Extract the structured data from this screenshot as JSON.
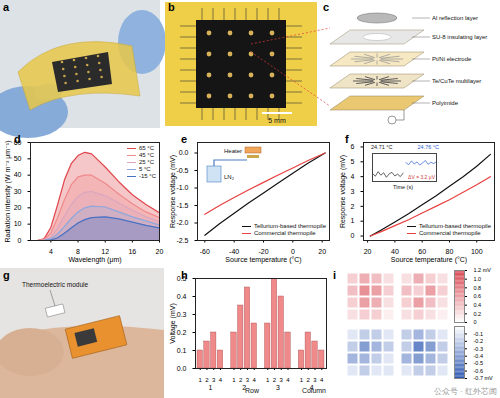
{
  "figure": {
    "panel_labels": [
      "a",
      "b",
      "c",
      "d",
      "e",
      "f",
      "g",
      "h",
      "i"
    ],
    "watermark": "公众号 · 红外芯闻"
  },
  "photo_b": {
    "scale_bar": "5 mm"
  },
  "diagram_c": {
    "layers": [
      "Al reflection layer",
      "SU-8 insulating layer",
      "Pt/Ni electrode",
      "Te/CuTe multilayer",
      "Polyimide"
    ]
  },
  "photo_g": {
    "label": "Thermoelectric module"
  },
  "chart_data": [
    {
      "type": "area",
      "xlabel": "Wavelength (μm)",
      "ylabel": "Radiation intensity (W m⁻² μm⁻¹)",
      "x": [
        2,
        3,
        4,
        5,
        6,
        7,
        8,
        9,
        10,
        12,
        14,
        16,
        18,
        20
      ],
      "series": [
        {
          "name": "65 °C",
          "color": "#e0474c",
          "values": [
            0,
            1,
            8,
            22,
            37,
            47,
            52,
            54,
            53,
            45,
            36,
            28,
            22,
            17
          ]
        },
        {
          "name": "45 °C",
          "color": "#ef8a8c",
          "values": [
            0,
            0.5,
            4.5,
            14,
            25,
            34,
            39,
            40,
            40,
            35,
            28.5,
            22.5,
            17.5,
            14
          ]
        },
        {
          "name": "25 °C",
          "color": "#d9a7c0",
          "values": [
            0,
            0.2,
            2,
            7.5,
            15,
            22,
            27,
            29.5,
            30,
            27.5,
            23,
            18.5,
            14.5,
            11.5
          ]
        },
        {
          "name": "5 °C",
          "color": "#8ea8dc",
          "values": [
            0,
            0.1,
            1,
            4,
            8.5,
            13.5,
            17.5,
            20,
            21,
            20.5,
            17.5,
            14.5,
            12,
            9.5
          ]
        },
        {
          "name": "-15 °C",
          "color": "#4a72c4",
          "values": [
            0,
            0,
            0.3,
            1.7,
            4.4,
            7.7,
            10.7,
            12.8,
            14,
            14.5,
            13.2,
            11.2,
            9.3,
            7.6
          ]
        }
      ],
      "xlim": [
        1,
        20
      ],
      "xticks": [
        4,
        8,
        12,
        16,
        20
      ],
      "ylim": [
        0,
        60
      ],
      "yticks": [
        0,
        10,
        20,
        30,
        40,
        50,
        60
      ],
      "legend": "top-right"
    },
    {
      "type": "line",
      "xlabel": "Source temperature (°C)",
      "ylabel": "Response voltage (mV)",
      "annotations": [
        "Heater",
        "LN₂"
      ],
      "x": [
        -60,
        -50,
        -40,
        -30,
        -20,
        -10,
        0,
        10,
        22
      ],
      "series": [
        {
          "name": "Tellurium-based thermopile",
          "color": "#111111",
          "values": [
            -2.35,
            -2.02,
            -1.72,
            -1.42,
            -1.14,
            -0.86,
            -0.58,
            -0.3,
            0
          ]
        },
        {
          "name": "Commercial thermopile",
          "color": "#e8403f",
          "values": [
            -1.75,
            -1.5,
            -1.27,
            -1.05,
            -0.84,
            -0.63,
            -0.43,
            -0.22,
            0
          ]
        }
      ],
      "xlim": [
        -65,
        25
      ],
      "xticks": [
        -60,
        -40,
        -20,
        0,
        20
      ],
      "ylim": [
        -2.5,
        0.3
      ],
      "yticks": [
        -2.5,
        {
          "value": -2,
          "label": "-2.0"
        },
        -1.5,
        {
          "value": -1,
          "label": "-1.0"
        },
        -0.5,
        {
          "value": 0,
          "label": "0.0"
        }
      ],
      "legend": "bottom-right"
    },
    {
      "type": "line",
      "xlabel": "Source temperature (°C)",
      "ylabel": "Response voltage (mV)",
      "x": [
        22,
        30,
        40,
        50,
        60,
        70,
        80,
        90,
        100,
        110
      ],
      "series": [
        {
          "name": "Tellurium-based thermopile",
          "color": "#111111",
          "values": [
            0,
            0.4,
            0.95,
            1.5,
            2.1,
            2.7,
            3.35,
            4.0,
            4.7,
            5.5
          ]
        },
        {
          "name": "Commercial thermopile",
          "color": "#e8403f",
          "values": [
            0,
            0.3,
            0.7,
            1.1,
            1.55,
            2.0,
            2.45,
            2.95,
            3.45,
            4.0
          ]
        }
      ],
      "xlim": [
        17,
        113
      ],
      "xticks": [
        20,
        40,
        60,
        80,
        100
      ],
      "ylim": [
        -0.3,
        6.3
      ],
      "yticks": [
        0,
        1,
        2,
        3,
        4,
        5,
        6
      ],
      "legend": "bottom-right",
      "inset": {
        "type": "line",
        "xlabel": "Time (s)",
        "annotations": [
          "ΔV = 3.2 μV"
        ],
        "tick_labels": false,
        "x": [
          0,
          1,
          2,
          3,
          4,
          5,
          6,
          7,
          8,
          9,
          10,
          11,
          12,
          13,
          14,
          15,
          16,
          17,
          18,
          19,
          20,
          21,
          22,
          23
        ],
        "series": [
          {
            "name": "24.71 °C",
            "color": "#222222",
            "values": [
              0.3,
              -0.5,
              0.8,
              -0.2,
              0.5,
              -0.8,
              0.2,
              0.6,
              -0.4,
              0.1,
              -0.6,
              0.4,
              null,
              null,
              null,
              null,
              null,
              null,
              null,
              null,
              null,
              null,
              null,
              null
            ]
          },
          {
            "name": "24.76 °C",
            "color": "#2f5fd0",
            "values": [
              null,
              null,
              null,
              null,
              null,
              null,
              null,
              null,
              null,
              null,
              null,
              null,
              3.4,
              2.8,
              3.9,
              3.0,
              3.6,
              2.7,
              3.3,
              4.0,
              2.9,
              3.5,
              3.1,
              3.7
            ]
          }
        ],
        "xlim": [
          0,
          23
        ],
        "ylim": [
          -2,
          6
        ]
      }
    },
    {
      "type": "bar",
      "xlabel": "Row",
      "columns_label": "Column",
      "ylabel": "Voltage (mV)",
      "rows": [
        1,
        2,
        3,
        4
      ],
      "columns": [
        1,
        2,
        3,
        4
      ],
      "values": [
        [
          0.1,
          0.15,
          0.2,
          0.1
        ],
        [
          0.2,
          0.35,
          0.45,
          0.25
        ],
        [
          0.25,
          0.5,
          0.4,
          0.2
        ],
        [
          0.1,
          0.2,
          0.15,
          0.1
        ]
      ],
      "color": "#f08a8a",
      "ylim": [
        0,
        0.5
      ],
      "yticks": [
        {
          "value": 0,
          "label": "0.0"
        },
        0.1,
        0.2,
        0.3,
        0.4,
        0.5
      ]
    },
    {
      "type": "heatmap",
      "tick_labels": false,
      "colorbars": [
        {
          "range": [
            0,
            1.2
          ],
          "colors": [
            "#ffffff",
            "#d6404a"
          ],
          "ticks": [
            0,
            0.2,
            0.4,
            0.6,
            0.8,
            {
              "value": 1,
              "label": "1.0"
            },
            {
              "value": 1.2,
              "label": "1.2 mV"
            }
          ],
          "maps": [
            [
              [
                0.3,
                0.5,
                0.4,
                0.2
              ],
              [
                0.4,
                0.7,
                0.6,
                0.3
              ],
              [
                0.3,
                0.6,
                0.5,
                0.2
              ],
              [
                0.2,
                0.3,
                0.3,
                0.1
              ]
            ],
            [
              [
                0.2,
                0.5,
                0.3,
                0.2
              ],
              [
                0.4,
                0.3,
                0.6,
                0.3
              ],
              [
                0.3,
                0.6,
                0.4,
                0.2
              ],
              [
                0.2,
                0.3,
                0.2,
                0.1
              ]
            ]
          ]
        },
        {
          "range": [
            -0.7,
            0
          ],
          "colors": [
            "#2a55b0",
            "#ffffff"
          ],
          "ticks": [
            {
              "value": -0.7,
              "label": "-0.7 mV"
            },
            -0.6,
            -0.5,
            -0.4,
            -0.3,
            -0.2,
            -0.1
          ],
          "maps": [
            [
              [
                -0.1,
                -0.2,
                -0.2,
                -0.1
              ],
              [
                -0.2,
                -0.4,
                -0.3,
                -0.2
              ],
              [
                -0.3,
                -0.3,
                -0.2,
                -0.1
              ],
              [
                -0.1,
                -0.2,
                -0.1,
                -0.1
              ]
            ],
            [
              [
                -0.2,
                -0.3,
                -0.2,
                -0.1
              ],
              [
                -0.2,
                -0.5,
                -0.4,
                -0.2
              ],
              [
                -0.3,
                -0.4,
                -0.3,
                -0.2
              ],
              [
                -0.1,
                -0.2,
                -0.2,
                -0.1
              ]
            ]
          ]
        }
      ]
    }
  ]
}
